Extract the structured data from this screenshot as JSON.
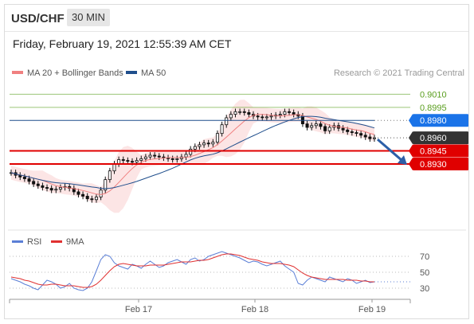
{
  "header": {
    "symbol": "USD/CHF",
    "interval": "30 MIN",
    "datetime": "Friday, February 19, 2021 12:55:39 AM CET"
  },
  "legend": {
    "ma20_label": "MA 20 + Bollinger Bands",
    "ma50_label": "MA 50",
    "credit": "Research © 2021 Trading Central",
    "rsi_label": "RSI",
    "rsi_ma_label": "9MA"
  },
  "colors": {
    "ma20": "#f08080",
    "ma50": "#1f4e8c",
    "resistance_green": "#5a9e1e",
    "support_red": "#e00000",
    "pivot_blue": "#1a73e8",
    "current_price": "#333333",
    "rsi": "#5b7fd6",
    "rsi_ma": "#e03030",
    "forecast_arrow": "#2c5fa8"
  },
  "chart_data": [
    {
      "type": "candlestick",
      "ylim": [
        0.8855,
        0.9025
      ],
      "x_ticks": [
        "Feb 17",
        "Feb 18",
        "Feb 19"
      ],
      "price_levels": [
        {
          "value": 0.901,
          "label": "0.9010",
          "kind": "resistance",
          "color": "#5a9e1e"
        },
        {
          "value": 0.8995,
          "label": "0.8995",
          "kind": "resistance",
          "color": "#5a9e1e"
        },
        {
          "value": 0.898,
          "label": "0.8980",
          "kind": "pivot",
          "color": "#1a73e8"
        },
        {
          "value": 0.896,
          "label": "0.8960",
          "kind": "current",
          "color": "#333333"
        },
        {
          "value": 0.8945,
          "label": "0.8945",
          "kind": "support",
          "color": "#e00000"
        },
        {
          "value": 0.893,
          "label": "0.8930",
          "kind": "support",
          "color": "#e00000"
        }
      ],
      "close_series": [
        0.892,
        0.8917,
        0.8915,
        0.8913,
        0.891,
        0.8907,
        0.8905,
        0.8903,
        0.8902,
        0.89,
        0.8901,
        0.8903,
        0.8904,
        0.8902,
        0.8898,
        0.8895,
        0.8893,
        0.889,
        0.8889,
        0.8892,
        0.89,
        0.8912,
        0.8922,
        0.893,
        0.8935,
        0.8934,
        0.8933,
        0.8932,
        0.8934,
        0.8936,
        0.8938,
        0.894,
        0.8939,
        0.8938,
        0.8937,
        0.8936,
        0.8935,
        0.8936,
        0.8938,
        0.8941,
        0.8947,
        0.895,
        0.8952,
        0.8954,
        0.8953,
        0.8955,
        0.8965,
        0.8975,
        0.8983,
        0.8987,
        0.899,
        0.899,
        0.8989,
        0.8987,
        0.8985,
        0.8984,
        0.8983,
        0.8984,
        0.8985,
        0.8986,
        0.8987,
        0.899,
        0.8989,
        0.8987,
        0.8985,
        0.8976,
        0.8972,
        0.8974,
        0.8976,
        0.8973,
        0.8968,
        0.8972,
        0.8974,
        0.8971,
        0.8969,
        0.8967,
        0.8966,
        0.8965,
        0.8963,
        0.8961,
        0.8959,
        0.896
      ],
      "forecast_arrow": {
        "from": 0.896,
        "to": 0.893
      },
      "series": [
        {
          "name": "MA 20 + Bollinger Bands"
        },
        {
          "name": "MA 50"
        }
      ]
    },
    {
      "type": "line",
      "name": "RSI",
      "ylim": [
        20,
        80
      ],
      "y_ticks": [
        70,
        50,
        30
      ],
      "series": [
        {
          "name": "RSI",
          "values": [
            42,
            40,
            38,
            35,
            33,
            30,
            28,
            34,
            40,
            38,
            35,
            30,
            32,
            36,
            30,
            28,
            27,
            30,
            38,
            52,
            66,
            72,
            70,
            62,
            58,
            56,
            54,
            60,
            58,
            55,
            60,
            64,
            60,
            56,
            58,
            62,
            64,
            66,
            63,
            60,
            66,
            68,
            64,
            66,
            70,
            72,
            74,
            76,
            74,
            72,
            70,
            68,
            65,
            62,
            64,
            63,
            60,
            58,
            60,
            62,
            64,
            58,
            54,
            50,
            36,
            34,
            40,
            44,
            42,
            40,
            38,
            44,
            42,
            40,
            38,
            42,
            40,
            36,
            38,
            40,
            37,
            38
          ]
        },
        {
          "name": "9MA",
          "values": [
            44,
            43,
            42,
            40,
            39,
            37,
            35,
            34,
            34,
            35,
            35,
            34,
            33,
            33,
            33,
            32,
            31,
            31,
            32,
            35,
            40,
            46,
            52,
            57,
            60,
            61,
            60,
            59,
            58,
            58,
            58,
            59,
            59,
            59,
            59,
            60,
            61,
            62,
            63,
            63,
            63,
            64,
            65,
            65,
            66,
            68,
            70,
            72,
            73,
            73,
            72,
            71,
            69,
            67,
            66,
            65,
            63,
            62,
            61,
            61,
            61,
            60,
            59,
            57,
            53,
            49,
            46,
            44,
            43,
            42,
            41,
            41,
            41,
            41,
            41,
            40,
            40,
            40,
            39,
            39,
            38,
            38
          ]
        }
      ]
    }
  ]
}
